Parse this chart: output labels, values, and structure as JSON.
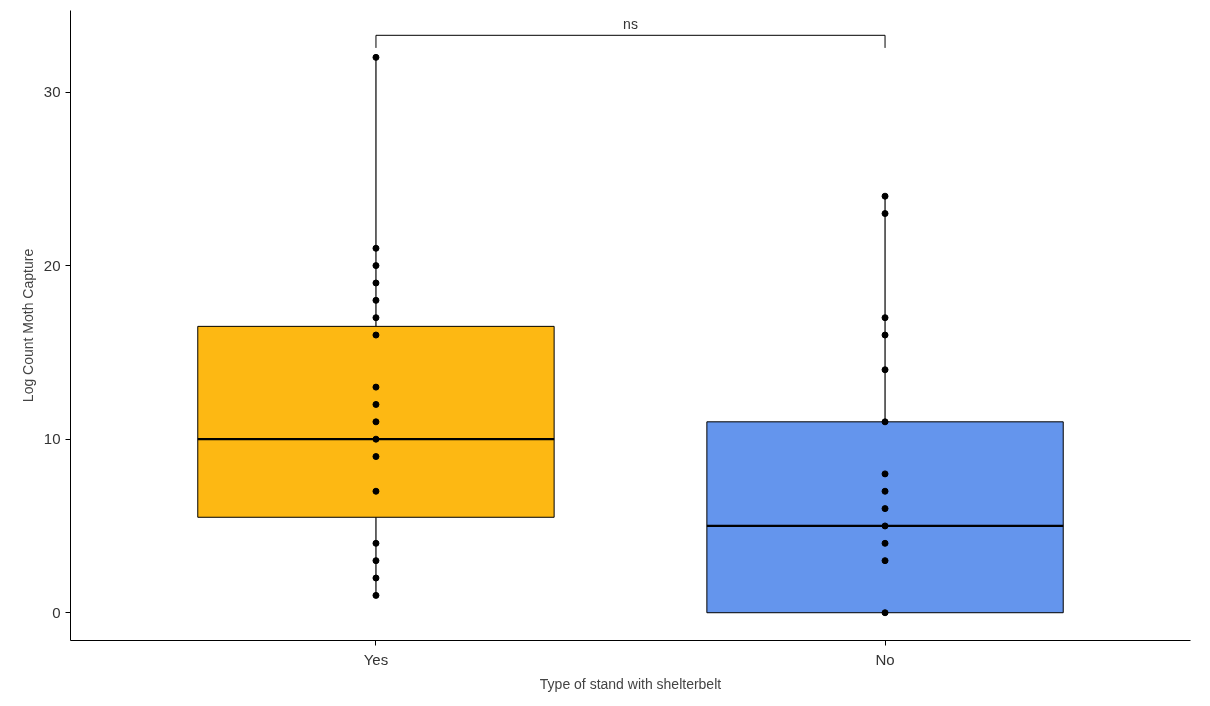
{
  "chart_data": {
    "type": "box",
    "xlabel": "Type of stand with shelterbelt",
    "ylabel": "Log Count Moth Capture",
    "categories": [
      "Yes",
      "No"
    ],
    "ylim": [
      -1.6,
      34.7
    ],
    "yticks": [
      0,
      10,
      20,
      30
    ],
    "grid": false,
    "series": [
      {
        "colors": [
          "#fdb813",
          "#6495ed"
        ],
        "boxes": [
          {
            "low": 1,
            "q1": 5.5,
            "median": 10,
            "q3": 16.5,
            "high": 32
          },
          {
            "low": 0,
            "q1": 0,
            "median": 5,
            "q3": 11,
            "high": 24
          }
        ]
      },
      {
        "type": "scatter",
        "color": "#000000",
        "marker": "circle",
        "x": [
          "Yes",
          "Yes",
          "Yes",
          "Yes",
          "Yes",
          "Yes",
          "Yes",
          "Yes",
          "Yes",
          "Yes",
          "Yes",
          "Yes",
          "Yes",
          "Yes",
          "Yes",
          "Yes",
          "Yes",
          "No",
          "No",
          "No",
          "No",
          "No",
          "No",
          "No",
          "No",
          "No",
          "No",
          "No",
          "No",
          "No"
        ],
        "values": [
          32,
          21,
          20,
          19,
          18,
          17,
          16,
          13,
          12,
          11,
          10,
          9,
          7,
          4,
          3,
          2,
          1,
          24,
          23,
          17,
          16,
          14,
          11,
          8,
          7,
          6,
          5,
          4,
          3,
          0
        ]
      }
    ],
    "annotations": [
      "ns"
    ]
  }
}
